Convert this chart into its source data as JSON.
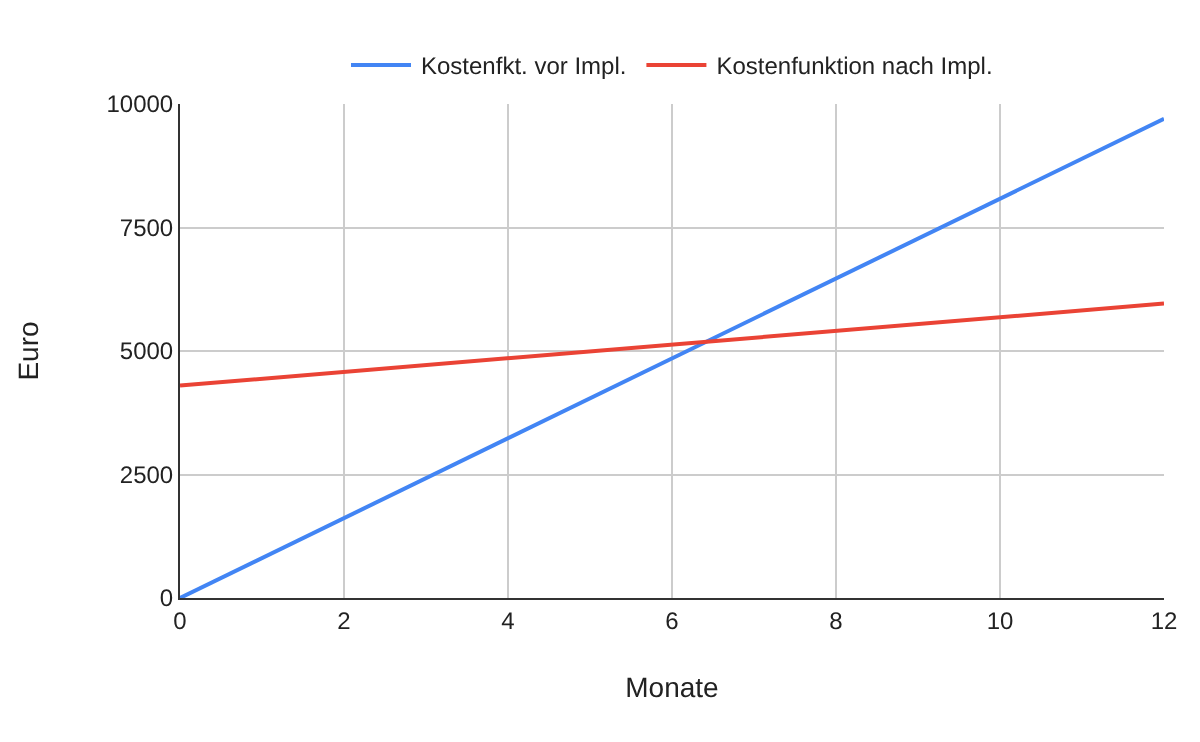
{
  "chart_data": {
    "type": "line",
    "xlabel": "Monate",
    "ylabel": "Euro",
    "x": [
      0,
      12
    ],
    "series": [
      {
        "name": "Kostenfkt. vor Impl.",
        "color": "#4285f4",
        "values": [
          0,
          9700
        ]
      },
      {
        "name": "Kostenfunktion nach Impl.",
        "color": "#ea4335",
        "values": [
          4300,
          5960
        ]
      }
    ],
    "xlim": [
      0,
      12
    ],
    "xticks": [
      0,
      2,
      4,
      6,
      8,
      10,
      12
    ],
    "ylim": [
      0,
      10000
    ],
    "yticks": [
      0,
      2500,
      5000,
      7500,
      10000
    ],
    "grid": true,
    "legend": "top",
    "marker": "none",
    "line_style": "solid"
  }
}
